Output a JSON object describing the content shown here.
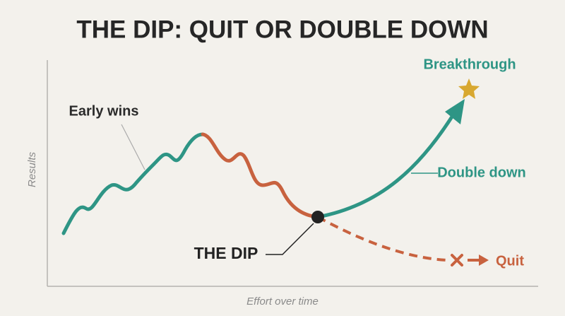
{
  "header": {
    "title": "THE DIP: QUIT OR DOUBLE DOWN"
  },
  "axes": {
    "y_label": "Results",
    "x_label": "Effort over time"
  },
  "annotations": {
    "early_wins": "Early wins",
    "breakthrough": "Breakthrough",
    "double_down": "Double down",
    "the_dip": "THE DIP",
    "quit": "Quit"
  }
}
